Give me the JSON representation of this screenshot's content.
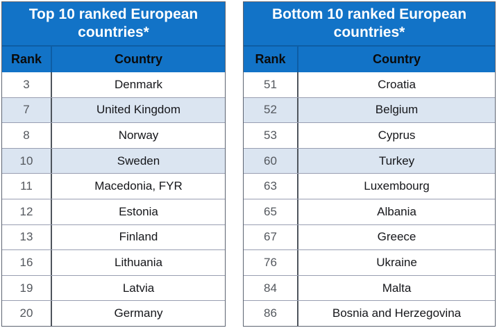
{
  "colors": {
    "header_blue": "#1273c7",
    "header_divider_blue": "#0d5da4",
    "shaded_row_blue": "#dbe5f1",
    "title_text": "#ffffff",
    "column_header_text": "#0a0a0a",
    "rank_text": "#53575d",
    "country_text": "#15161a",
    "row_border_gray": "#989eb1",
    "column_divider_gray": "#4e545c",
    "outer_border_gray": "#5c6370"
  },
  "chart_data": [
    {
      "type": "table",
      "title": "Top 10 ranked European countries*",
      "columns": [
        "Rank",
        "Country"
      ],
      "rows": [
        {
          "rank": "3",
          "country": "Denmark"
        },
        {
          "rank": "7",
          "country": "United Kingdom"
        },
        {
          "rank": "8",
          "country": "Norway"
        },
        {
          "rank": "10",
          "country": "Sweden"
        },
        {
          "rank": "11",
          "country": "Macedonia, FYR"
        },
        {
          "rank": "12",
          "country": "Estonia"
        },
        {
          "rank": "13",
          "country": "Finland"
        },
        {
          "rank": "16",
          "country": "Lithuania"
        },
        {
          "rank": "19",
          "country": "Latvia"
        },
        {
          "rank": "20",
          "country": "Germany"
        }
      ],
      "shaded_row_indices": [
        1,
        3
      ]
    },
    {
      "type": "table",
      "title": "Bottom 10 ranked European countries*",
      "columns": [
        "Rank",
        "Country"
      ],
      "rows": [
        {
          "rank": "51",
          "country": "Croatia"
        },
        {
          "rank": "52",
          "country": "Belgium"
        },
        {
          "rank": "53",
          "country": "Cyprus"
        },
        {
          "rank": "60",
          "country": "Turkey"
        },
        {
          "rank": "63",
          "country": "Luxembourg"
        },
        {
          "rank": "65",
          "country": "Albania"
        },
        {
          "rank": "67",
          "country": "Greece"
        },
        {
          "rank": "76",
          "country": "Ukraine"
        },
        {
          "rank": "84",
          "country": "Malta"
        },
        {
          "rank": "86",
          "country": "Bosnia and Herzegovina"
        }
      ],
      "shaded_row_indices": [
        1,
        3
      ]
    }
  ]
}
